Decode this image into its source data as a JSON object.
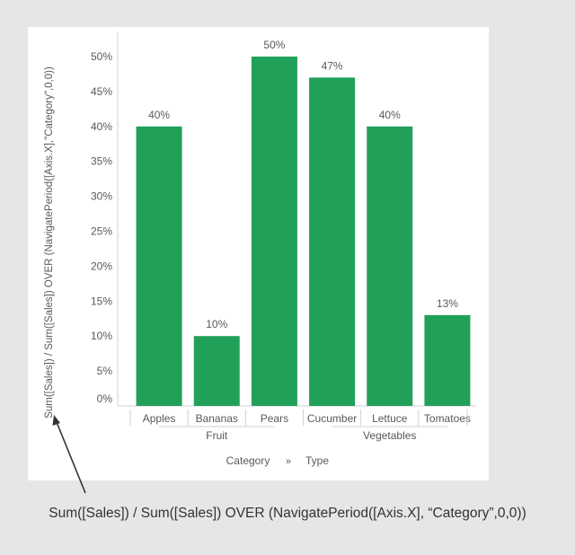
{
  "colors": {
    "bar": "#21a05a",
    "text": "#595959",
    "axis": "#d0d0d0",
    "arrow": "#333333"
  },
  "caption": "Sum([Sales]) / Sum([Sales]) OVER (NavigatePeriod([Axis.X], “Category”,0,0))",
  "chart_data": {
    "type": "bar",
    "title": "",
    "ylabel": "Sum([Sales]) / Sum([Sales]) OVER (NavigatePeriod([Axis.X],\"Category\",0,0))",
    "xlabel": "Category",
    "xlabel_separator": "»",
    "xlabel_secondary": "Type",
    "y_ticks": [
      "0%",
      "5%",
      "10%",
      "15%",
      "20%",
      "25%",
      "30%",
      "35%",
      "40%",
      "45%",
      "50%"
    ],
    "ylim": [
      0,
      0.52
    ],
    "grid": false,
    "groups": [
      {
        "label": "Fruit",
        "start": 0,
        "end": 2
      },
      {
        "label": "Vegetables",
        "start": 3,
        "end": 5
      }
    ],
    "categories": [
      "Apples",
      "Bananas",
      "Pears",
      "Cucumber",
      "Lettuce",
      "Tomatoes"
    ],
    "values": [
      0.4,
      0.1,
      0.5,
      0.47,
      0.4,
      0.13
    ],
    "data_labels": [
      "40%",
      "10%",
      "50%",
      "47%",
      "40%",
      "13%"
    ]
  }
}
